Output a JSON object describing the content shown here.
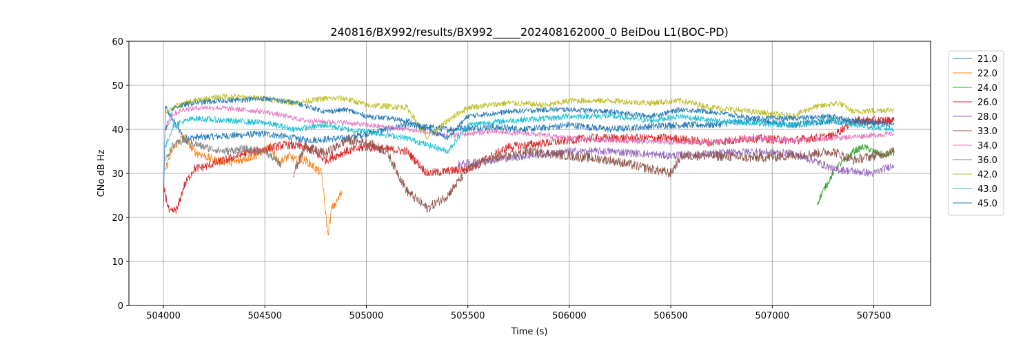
{
  "chart_data": {
    "type": "line",
    "title": "240816/BX992/results/BX992_____202408162000_0 BeiDou L1(BOC-PD)",
    "xlabel": "Time (s)",
    "ylabel": "CNo dB Hz",
    "xlim": [
      503830,
      507780
    ],
    "ylim": [
      0,
      60
    ],
    "xticks": [
      504000,
      504500,
      505000,
      505500,
      506000,
      506500,
      507000,
      507500
    ],
    "xtick_labels": [
      "504000",
      "504500",
      "505000",
      "505500",
      "506000",
      "506500",
      "507000",
      "507500"
    ],
    "yticks": [
      0,
      10,
      20,
      30,
      40,
      50,
      60
    ],
    "ytick_labels": [
      "0",
      "10",
      "20",
      "30",
      "40",
      "50",
      "60"
    ],
    "grid": true,
    "legend_position": "right, outside plot",
    "series": [
      {
        "name": "21.0",
        "color": "#1f77b4",
        "noise": 0.8,
        "points": [
          [
            504000,
            22
          ],
          [
            504010,
            45
          ],
          [
            504100,
            38
          ],
          [
            504300,
            38.5
          ],
          [
            504500,
            39
          ],
          [
            504650,
            38
          ],
          [
            504700,
            37.5
          ],
          [
            504900,
            38
          ],
          [
            505000,
            39
          ],
          [
            505200,
            41
          ],
          [
            505400,
            40
          ],
          [
            505600,
            40.5
          ],
          [
            505800,
            40
          ],
          [
            506000,
            41
          ],
          [
            506200,
            40
          ],
          [
            506500,
            41
          ],
          [
            506700,
            41
          ],
          [
            506900,
            42
          ],
          [
            507100,
            41
          ],
          [
            507300,
            42
          ],
          [
            507400,
            41.5
          ],
          [
            507600,
            42
          ]
        ]
      },
      {
        "name": "22.0",
        "color": "#ff7f0e",
        "noise": 1.0,
        "points": [
          [
            504010,
            31
          ],
          [
            504050,
            36
          ],
          [
            504100,
            38.5
          ],
          [
            504150,
            35
          ],
          [
            504250,
            33
          ],
          [
            504350,
            32.5
          ],
          [
            504450,
            34
          ],
          [
            504530,
            36
          ],
          [
            504570,
            32.5
          ],
          [
            504620,
            34
          ],
          [
            504650,
            33
          ],
          [
            504700,
            33
          ],
          [
            504780,
            30
          ],
          [
            504810,
            16
          ],
          [
            504830,
            22
          ],
          [
            504860,
            24
          ],
          [
            504880,
            26
          ]
        ]
      },
      {
        "name": "24.0",
        "color": "#2ca02c",
        "noise": 0.8,
        "points": [
          [
            507220,
            23
          ],
          [
            507250,
            26
          ],
          [
            507300,
            30
          ],
          [
            507330,
            32
          ],
          [
            507360,
            33
          ],
          [
            507400,
            35
          ],
          [
            507450,
            36
          ],
          [
            507500,
            35
          ],
          [
            507550,
            34
          ],
          [
            507600,
            35
          ]
        ]
      },
      {
        "name": "26.0",
        "color": "#d62728",
        "noise": 1.0,
        "points": [
          [
            504000,
            27
          ],
          [
            504030,
            21
          ],
          [
            504070,
            22
          ],
          [
            504100,
            27
          ],
          [
            504150,
            31
          ],
          [
            504200,
            31.5
          ],
          [
            504300,
            33
          ],
          [
            504400,
            34.5
          ],
          [
            504500,
            35.5
          ],
          [
            504600,
            36.5
          ],
          [
            504700,
            36
          ],
          [
            504800,
            33
          ],
          [
            504900,
            35
          ],
          [
            505000,
            36
          ],
          [
            505200,
            35
          ],
          [
            505300,
            30
          ],
          [
            505500,
            31
          ],
          [
            505700,
            36
          ],
          [
            505900,
            37
          ],
          [
            506100,
            38
          ],
          [
            506300,
            38
          ],
          [
            506500,
            38
          ],
          [
            506700,
            37
          ],
          [
            506900,
            38
          ],
          [
            507100,
            37.5
          ],
          [
            507300,
            38.5
          ],
          [
            507400,
            42
          ],
          [
            507600,
            42
          ]
        ]
      },
      {
        "name": "28.0",
        "color": "#9467bd",
        "noise": 0.9,
        "points": [
          [
            505450,
            32
          ],
          [
            505600,
            33
          ],
          [
            505800,
            34
          ],
          [
            506000,
            35
          ],
          [
            506200,
            35
          ],
          [
            506500,
            34
          ],
          [
            506700,
            34.5
          ],
          [
            506900,
            35
          ],
          [
            507100,
            34.5
          ],
          [
            507200,
            33
          ],
          [
            507300,
            31
          ],
          [
            507400,
            30.5
          ],
          [
            507500,
            30
          ],
          [
            507600,
            32
          ]
        ]
      },
      {
        "name": "33.0",
        "color": "#8c564b",
        "noise": 1.1,
        "points": [
          [
            504640,
            30
          ],
          [
            504700,
            36
          ],
          [
            504800,
            34.5
          ],
          [
            504900,
            37.5
          ],
          [
            505000,
            37
          ],
          [
            505100,
            35
          ],
          [
            505200,
            26
          ],
          [
            505300,
            22
          ],
          [
            505400,
            25
          ],
          [
            505500,
            31
          ],
          [
            505600,
            33
          ],
          [
            505800,
            35
          ],
          [
            506000,
            34
          ],
          [
            506200,
            33
          ],
          [
            506400,
            31
          ],
          [
            506500,
            30
          ],
          [
            506550,
            34
          ],
          [
            506700,
            34
          ],
          [
            506900,
            33.5
          ],
          [
            507100,
            34
          ],
          [
            507300,
            35
          ],
          [
            507400,
            33
          ],
          [
            507600,
            35
          ]
        ]
      },
      {
        "name": "34.0",
        "color": "#e377c2",
        "noise": 0.6,
        "points": [
          [
            504010,
            40
          ],
          [
            504050,
            43.5
          ],
          [
            504100,
            44.5
          ],
          [
            504200,
            45
          ],
          [
            504300,
            44.8
          ],
          [
            504500,
            44
          ],
          [
            504650,
            42.5
          ],
          [
            504700,
            42
          ],
          [
            504900,
            41.5
          ],
          [
            505000,
            41
          ],
          [
            505200,
            40
          ],
          [
            505400,
            38.5
          ],
          [
            505600,
            39.5
          ],
          [
            505800,
            39
          ],
          [
            506000,
            38
          ],
          [
            506200,
            37.5
          ],
          [
            506500,
            37
          ],
          [
            506700,
            37
          ],
          [
            506900,
            38
          ],
          [
            507100,
            37.5
          ],
          [
            507300,
            38
          ],
          [
            507600,
            39
          ]
        ]
      },
      {
        "name": "36.0",
        "color": "#7f7f7f",
        "noise": 0.9,
        "points": [
          [
            504010,
            33
          ],
          [
            504040,
            36
          ],
          [
            504100,
            37.5
          ],
          [
            504200,
            36
          ],
          [
            504300,
            35
          ],
          [
            504400,
            35.5
          ],
          [
            504500,
            35
          ],
          [
            504580,
            32
          ]
        ]
      },
      {
        "name": "42.0",
        "color": "#bcbd22",
        "noise": 0.7,
        "points": [
          [
            504010,
            44
          ],
          [
            504050,
            45
          ],
          [
            504150,
            46.5
          ],
          [
            504300,
            47.5
          ],
          [
            504500,
            47
          ],
          [
            504650,
            46
          ],
          [
            504800,
            47
          ],
          [
            504900,
            47
          ],
          [
            505000,
            45.5
          ],
          [
            505200,
            45
          ],
          [
            505300,
            38
          ],
          [
            505400,
            42
          ],
          [
            505500,
            45
          ],
          [
            505700,
            46
          ],
          [
            505900,
            45.5
          ],
          [
            506000,
            46.5
          ],
          [
            506200,
            46.5
          ],
          [
            506400,
            46
          ],
          [
            506550,
            46.5
          ],
          [
            506700,
            45
          ],
          [
            506900,
            44
          ],
          [
            507100,
            43
          ],
          [
            507200,
            45
          ],
          [
            507330,
            46
          ],
          [
            507400,
            44
          ],
          [
            507600,
            44.5
          ]
        ]
      },
      {
        "name": "43.0",
        "color": "#17becf",
        "noise": 0.7,
        "points": [
          [
            504010,
            36
          ],
          [
            504050,
            41
          ],
          [
            504150,
            42.5
          ],
          [
            504300,
            42
          ],
          [
            504500,
            41.5
          ],
          [
            504650,
            40
          ],
          [
            504800,
            41
          ],
          [
            504900,
            40
          ],
          [
            505000,
            39.5
          ],
          [
            505200,
            38
          ],
          [
            505400,
            35
          ],
          [
            505500,
            41
          ],
          [
            505700,
            42
          ],
          [
            505900,
            42.5
          ],
          [
            506000,
            43
          ],
          [
            506200,
            43
          ],
          [
            506400,
            42
          ],
          [
            506550,
            43
          ],
          [
            506700,
            42
          ],
          [
            506900,
            41.5
          ],
          [
            507100,
            41
          ],
          [
            507300,
            42
          ],
          [
            507400,
            41
          ],
          [
            507600,
            40
          ]
        ]
      },
      {
        "name": "45.0",
        "color": "#1f77b4",
        "noise": 0.6,
        "points": [
          [
            504010,
            40
          ],
          [
            504050,
            45
          ],
          [
            504150,
            46
          ],
          [
            504300,
            46.5
          ],
          [
            504500,
            47
          ],
          [
            504650,
            46
          ],
          [
            504800,
            44
          ],
          [
            504900,
            44.5
          ],
          [
            505000,
            43
          ],
          [
            505200,
            42
          ],
          [
            505400,
            38
          ],
          [
            505500,
            43
          ],
          [
            505700,
            44
          ],
          [
            505900,
            44.5
          ],
          [
            506000,
            44.5
          ],
          [
            506200,
            44
          ],
          [
            506400,
            43
          ],
          [
            506550,
            44.5
          ],
          [
            506700,
            44
          ],
          [
            506900,
            42.5
          ],
          [
            507100,
            42.5
          ],
          [
            507300,
            43
          ],
          [
            507400,
            42
          ],
          [
            507600,
            41
          ]
        ]
      }
    ]
  }
}
